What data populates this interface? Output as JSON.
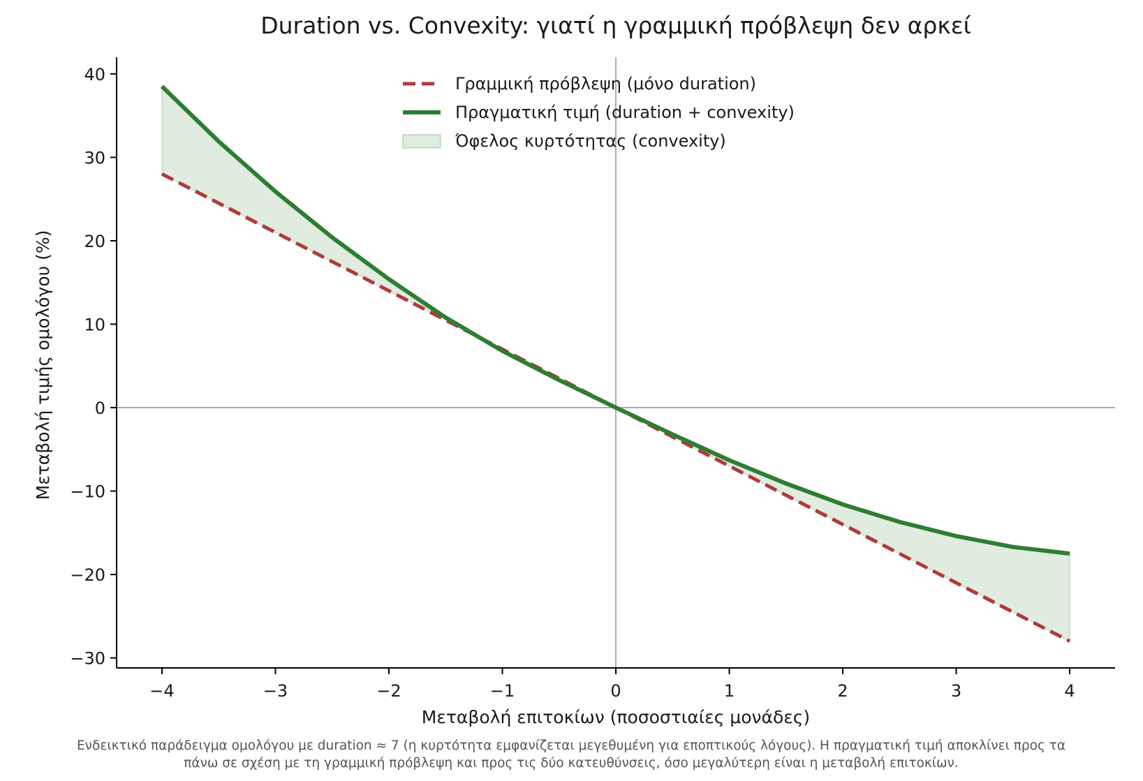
{
  "chart_data": {
    "type": "line",
    "title": "Duration vs. Convexity: γιατί η γραμμική πρόβλεψη δεν αρκεί",
    "xlabel": "Μεταβολή επιτοκίων (ποσοστιαίες μονάδες)",
    "ylabel": "Μεταβολή τιμής ομολόγου (%)",
    "xlim": [
      -4.4,
      4.4
    ],
    "ylim": [
      -31.2,
      42
    ],
    "xticks": [
      -4,
      -3,
      -2,
      -1,
      0,
      1,
      2,
      3,
      4
    ],
    "xtick_labels": [
      "−4",
      "−3",
      "−2",
      "−1",
      "0",
      "1",
      "2",
      "3",
      "4"
    ],
    "yticks": [
      -30,
      -20,
      -10,
      0,
      10,
      20,
      30,
      40
    ],
    "ytick_labels": [
      "−30",
      "−20",
      "−10",
      "0",
      "10",
      "20",
      "30",
      "40"
    ],
    "grid": false,
    "legend_position": "top-center",
    "series": [
      {
        "name": "Γραμμική πρόβλεψη (μόνο duration)",
        "style": "dashed",
        "color": "#b03a3a",
        "x": [
          -4,
          -3,
          -2,
          -1,
          0,
          1,
          2,
          3,
          4
        ],
        "values": [
          28,
          21,
          14,
          7,
          0,
          -7,
          -14,
          -21,
          -28
        ]
      },
      {
        "name": "Πραγματική τιμή (duration + convexity)",
        "style": "solid",
        "color": "#2e7d32",
        "x": [
          -4,
          -3.5,
          -3,
          -2.5,
          -2,
          -1.5,
          -1,
          -0.5,
          0,
          0.5,
          1,
          1.5,
          2,
          2.5,
          3,
          3.5,
          4
        ],
        "values": [
          38.5,
          31.9,
          25.9,
          20.4,
          15.4,
          10.8,
          6.8,
          3.3,
          0,
          -3.2,
          -6.3,
          -9.1,
          -11.6,
          -13.7,
          -15.4,
          -16.7,
          -17.5
        ]
      },
      {
        "name": "Όφελος κυρτότητας (convexity)",
        "style": "fill-between",
        "color": "#2e7d32"
      }
    ],
    "annotations": [
      "Ενδεικτικό παράδειγμα ομολόγου με duration ≈ 7 (η κυρτότητα εμφανίζεται μεγεθυμένη για εποπτικούς λόγους). Η πραγματική τιμή αποκλίνει προς τα",
      "πάνω σε σχέση με τη γραμμική πρόβλεψη και προς τις δύο κατευθύνσεις, όσο μεγαλύτερη είναι η μεταβολή επιτοκίων."
    ]
  }
}
